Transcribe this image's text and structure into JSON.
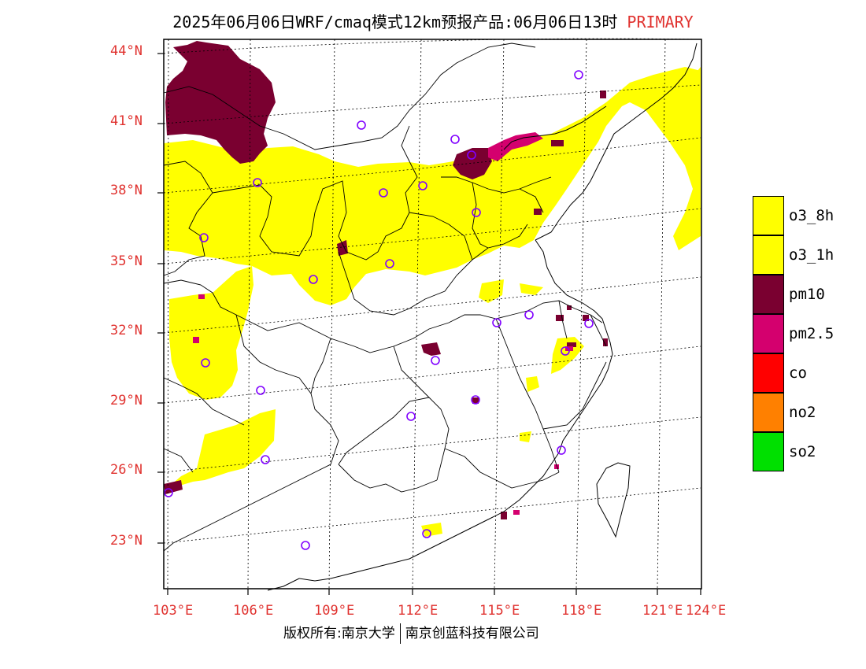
{
  "title": {
    "main": "2025年06月06日WRF/cmaq模式12km预报产品:06月06日13时",
    "tag": "PRIMARY"
  },
  "map": {
    "lat_labels": [
      "44°N",
      "41°N",
      "38°N",
      "35°N",
      "32°N",
      "29°N",
      "26°N",
      "23°N"
    ],
    "lon_labels": [
      "103°E",
      "106°E",
      "109°E",
      "112°E",
      "115°E",
      "118°E",
      "121°E",
      "124°E"
    ],
    "colors": {
      "o3": "#ffff00",
      "pm10": "#7a0030",
      "pm25": "#d4006e",
      "station": "#8000ff",
      "axis_label": "#e0322f"
    }
  },
  "legend": {
    "items": [
      {
        "label": "o3_8h",
        "color": "#ffff00"
      },
      {
        "label": "o3_1h",
        "color": "#ffff00"
      },
      {
        "label": "pm10",
        "color": "#7a0030"
      },
      {
        "label": "pm2.5",
        "color": "#d4006e"
      },
      {
        "label": "co",
        "color": "#ff0000"
      },
      {
        "label": "no2",
        "color": "#ff8000"
      },
      {
        "label": "so2",
        "color": "#00e000"
      }
    ]
  },
  "footer": {
    "left": "版权所有:南京大学",
    "right": "南京创蓝科技有限公司"
  }
}
